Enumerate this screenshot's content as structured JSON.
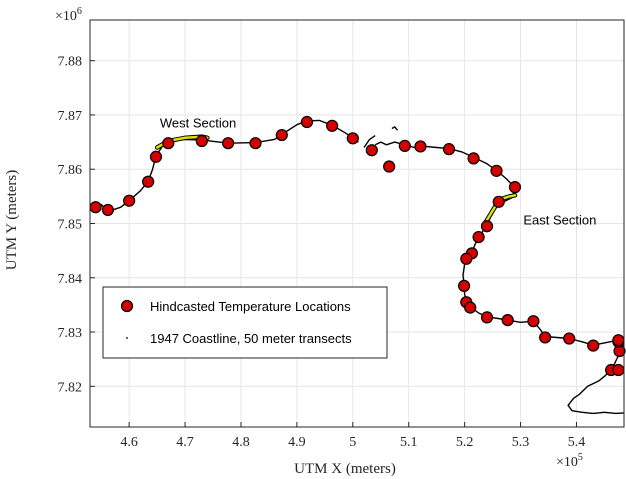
{
  "chart_data": {
    "type": "scatter",
    "xlabel": "UTM X (meters)",
    "ylabel": "UTM Y (meters)",
    "x_exponent_label": "×10",
    "x_exponent_power": "5",
    "y_exponent_label": "×10",
    "y_exponent_power": "6",
    "xlim": [
      4.53,
      5.485
    ],
    "ylim": [
      7.8125,
      7.8875
    ],
    "xticks": [
      4.6,
      4.7,
      4.8,
      4.9,
      5.0,
      5.1,
      5.2,
      5.3,
      5.4
    ],
    "xtick_labels": [
      "4.6",
      "4.7",
      "4.8",
      "4.9",
      "5",
      "5.1",
      "5.2",
      "5.3",
      "5.4"
    ],
    "yticks": [
      7.82,
      7.83,
      7.84,
      7.85,
      7.86,
      7.87,
      7.88
    ],
    "ytick_labels": [
      "7.82",
      "7.83",
      "7.84",
      "7.85",
      "7.86",
      "7.87",
      "7.88"
    ],
    "grid": true,
    "legend_position": "lower-left",
    "annotations": [
      {
        "text": "West Section",
        "x": 4.655,
        "y": 7.8677
      },
      {
        "text": "East Section",
        "x": 5.305,
        "y": 7.8498
      }
    ],
    "series": [
      {
        "name": "Hindcasted Temperature Locations",
        "marker": "circle",
        "color": "#d40000",
        "x": [
          4.54,
          4.562,
          4.6,
          4.634,
          4.648,
          4.67,
          4.73,
          4.777,
          4.826,
          4.873,
          4.918,
          4.963,
          5.0,
          5.034,
          5.065,
          5.093,
          5.121,
          5.172,
          5.216,
          5.257,
          5.29,
          5.261,
          5.24,
          5.225,
          5.213,
          5.203,
          5.199,
          5.203,
          5.21,
          5.24,
          5.277,
          5.323,
          5.344,
          5.387,
          5.43,
          5.462,
          5.475,
          5.477,
          5.475,
          5.475
        ],
        "y": [
          7.853,
          7.8525,
          7.8542,
          7.8577,
          7.8623,
          7.8648,
          7.8652,
          7.8648,
          7.8648,
          7.8663,
          7.8687,
          7.868,
          7.8657,
          7.8635,
          7.8605,
          7.8643,
          7.8642,
          7.8637,
          7.862,
          7.8597,
          7.8567,
          7.854,
          7.8495,
          7.8475,
          7.8445,
          7.8435,
          7.8385,
          7.8355,
          7.8345,
          7.8327,
          7.8322,
          7.832,
          7.829,
          7.8288,
          7.8275,
          7.823,
          7.823,
          7.8265,
          7.8282,
          7.8285
        ]
      },
      {
        "name": "1947 Coastline, 50 meter transects",
        "marker": "point",
        "color": "#000000"
      }
    ],
    "colors": {
      "coastline": "#000000",
      "section_highlight": "#e0e000",
      "marker_fill": "#d40000",
      "marker_edge": "#000000",
      "grid": "#e6e6e6",
      "axis": "#262626"
    }
  }
}
